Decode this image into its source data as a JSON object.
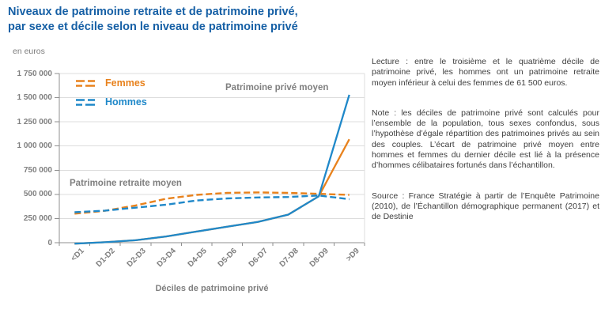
{
  "title": {
    "line1": "Niveaux de patrimoine retraite et de patrimoine privé,",
    "line2": "par sexe et décile selon le niveau de patrimoine privé"
  },
  "colors": {
    "title_blue": "#155fa5",
    "femmes_orange": "#e8821d",
    "hommes_blue": "#1f88c9",
    "grid_gray": "#dcdcdc",
    "axis_gray": "#8f8f8f",
    "label_gray": "#7f7f7f",
    "notes_gray": "#3d3d3d"
  },
  "chart_data": {
    "type": "line",
    "ylabel": "en euros",
    "xlabel": "Déciles de patrimoine privé",
    "categories": [
      "<D1",
      "D1-D2",
      "D2-D3",
      "D3-D4",
      "D4-D5",
      "D5-D6",
      "D6-D7",
      "D7-D8",
      "D8-D9",
      ">D9"
    ],
    "ylim": [
      0,
      1750000
    ],
    "ytick_step": 250000,
    "ytick_labels": [
      "0",
      "250 000",
      "500 000",
      "750 000",
      "1 000 000",
      "1 250 000",
      "1 500 000",
      "1 750 000"
    ],
    "grid": true,
    "legend_position": "top-left-inside",
    "legend": [
      {
        "label": "Femmes",
        "color": "#e8821d"
      },
      {
        "label": "Hommes",
        "color": "#1f88c9"
      }
    ],
    "annotations": [
      {
        "text": "Patrimoine retraite moyen"
      },
      {
        "text": "Patrimoine privé moyen"
      }
    ],
    "series": [
      {
        "name": "Patrimoine retraite moyen – Femmes",
        "style": "dashed",
        "color": "#e8821d",
        "values": [
          300000,
          330000,
          385000,
          455000,
          495000,
          515000,
          520000,
          515000,
          505000,
          495000
        ]
      },
      {
        "name": "Patrimoine retraite moyen – Hommes",
        "style": "dashed",
        "color": "#1f88c9",
        "values": [
          315000,
          332000,
          362000,
          393500,
          437000,
          458000,
          468000,
          473000,
          488000,
          450000
        ]
      },
      {
        "name": "Patrimoine privé moyen – Femmes",
        "style": "solid",
        "color": "#e8821d",
        "values": [
          -10000,
          5000,
          25000,
          65000,
          115000,
          165000,
          215000,
          290000,
          480000,
          1070000
        ]
      },
      {
        "name": "Patrimoine privé moyen – Hommes",
        "style": "solid",
        "color": "#1f88c9",
        "values": [
          -10000,
          5000,
          25000,
          65000,
          115000,
          165000,
          215000,
          290000,
          480000,
          1530000
        ]
      }
    ]
  },
  "side_texts": {
    "lecture": "Lecture : entre le troisième et le quatrième décile de patrimoine privé, les hommes ont un patrimoine retraite moyen inférieur à celui des femmes de 61 500 euros.",
    "note": "Note : les déciles de patrimoine privé sont calculés pour l’ensemble de la population, tous sexes confondus, sous l’hypothèse d’égale répartition des patrimoines privés au sein des couples. L’écart de patrimoine privé moyen entre hommes et femmes du dernier décile est lié à la présence d’hommes célibataires fortunés dans l’échantillon.",
    "source": "Source : France Stratégie à partir de l’Enquête Patrimoine (2010), de l’Échantillon démographique permanent (2017) et de Destinie"
  }
}
